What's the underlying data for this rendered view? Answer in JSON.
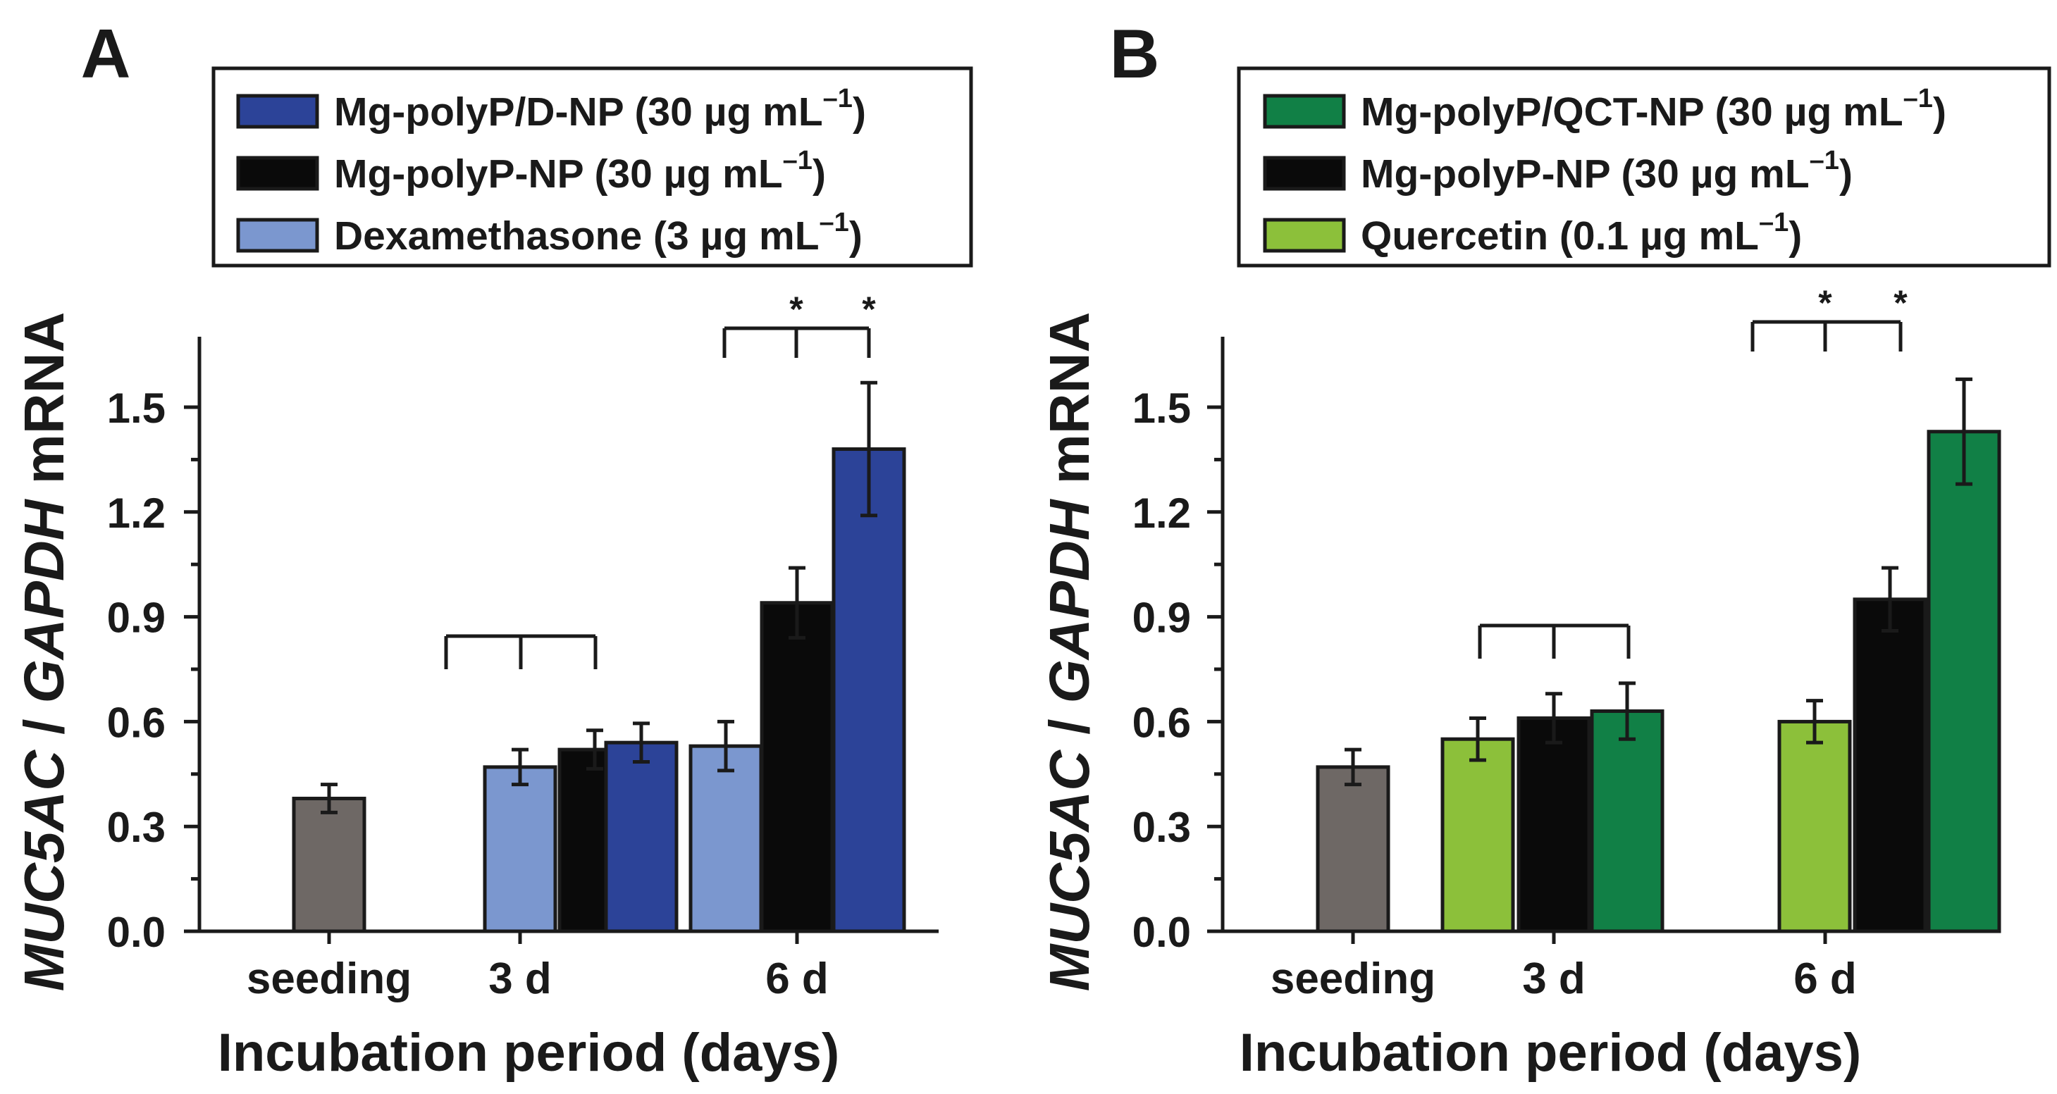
{
  "figure": {
    "panel_labels": [
      "A",
      "B"
    ],
    "star": "*"
  },
  "colors": {
    "seeding": "#6e6865",
    "np_plain": "#0a0a0a",
    "dex": "#7b97cf",
    "dnp": "#2c4398",
    "qct": "#8cc03a",
    "qctnp": "#118046",
    "axis": "#1a1a1a"
  },
  "chart_data": [
    {
      "type": "bar",
      "panel": "A",
      "categories": [
        "seeding",
        "3 d",
        "6 d"
      ],
      "xlabel": "Incubation period (days)",
      "ylabel_parts": [
        "MUC5AC",
        " / ",
        "GAPDH",
        " mRNA"
      ],
      "ylim": [
        0,
        1.7
      ],
      "yticks": [
        "0.0",
        "0.3",
        "0.6",
        "0.9",
        "1.2",
        "1.5"
      ],
      "legend": [
        {
          "label": "Mg-polyP/D-NP (30 µg mL",
          "sup": "–1",
          "close": ")",
          "color": "#2c4398"
        },
        {
          "label": "Mg-polyP-NP (30 µg   mL",
          "sup": "–1",
          "close": ")",
          "color": "#0a0a0a"
        },
        {
          "label": "Dexamethasone (3 µg mL",
          "sup": "–1",
          "close": ")",
          "color": "#7b97cf"
        }
      ],
      "bars": [
        {
          "group": "seeding",
          "series": "Seeding",
          "value": 0.38,
          "error": 0.04,
          "color": "#6e6865"
        },
        {
          "group": "3 d",
          "series": "Dexamethasone (3 µg mL–1)",
          "value": 0.47,
          "error": 0.05,
          "color": "#7b97cf"
        },
        {
          "group": "3 d",
          "series": "Mg-polyP-NP (30 µg mL–1)",
          "value": 0.52,
          "error": 0.055,
          "color": "#0a0a0a"
        },
        {
          "group": "3 d",
          "series": "Mg-polyP/D-NP (30 µg mL–1)",
          "value": 0.54,
          "error": 0.055,
          "color": "#2c4398"
        },
        {
          "group": "6 d",
          "series": "Dexamethasone (3 µg mL–1)",
          "value": 0.53,
          "error": 0.07,
          "color": "#7b97cf"
        },
        {
          "group": "6 d",
          "series": "Mg-polyP-NP (30 µg mL–1)",
          "value": 0.94,
          "error": 0.1,
          "color": "#0a0a0a"
        },
        {
          "group": "6 d",
          "series": "Mg-polyP/D-NP (30 µg mL–1)",
          "value": 1.38,
          "error": 0.19,
          "color": "#2c4398"
        }
      ],
      "significance": [
        {
          "group": "3 d",
          "stars": [
            false,
            false
          ]
        },
        {
          "group": "6 d",
          "stars": [
            true,
            true
          ]
        }
      ]
    },
    {
      "type": "bar",
      "panel": "B",
      "categories": [
        "seeding",
        "3 d",
        "6 d"
      ],
      "xlabel": "Incubation period (days)",
      "ylabel_parts": [
        "MUC5AC",
        " / ",
        "GAPDH",
        " mRNA"
      ],
      "ylim": [
        0,
        1.7
      ],
      "yticks": [
        "0.0",
        "0.3",
        "0.6",
        "0.9",
        "1.2",
        "1.5"
      ],
      "legend": [
        {
          "label": "Mg-polyP/QCT-NP (30 µg mL",
          "sup": "–1",
          "close": ")",
          "color": "#118046"
        },
        {
          "label": "Mg-polyP-NP (30 µg   mL",
          "sup": "–1",
          "close": ")",
          "color": "#0a0a0a"
        },
        {
          "label": "Quercetin (0.1 µg mL",
          "sup": "–1",
          "close": ")",
          "color": "#8cc03a"
        }
      ],
      "bars": [
        {
          "group": "seeding",
          "series": "Seeding",
          "value": 0.47,
          "error": 0.05,
          "color": "#6e6865"
        },
        {
          "group": "3 d",
          "series": "Quercetin (0.1 µg mL–1)",
          "value": 0.55,
          "error": 0.06,
          "color": "#8cc03a"
        },
        {
          "group": "3 d",
          "series": "Mg-polyP-NP (30 µg mL–1)",
          "value": 0.61,
          "error": 0.07,
          "color": "#0a0a0a"
        },
        {
          "group": "3 d",
          "series": "Mg-polyP/QCT-NP (30 µg mL–1)",
          "value": 0.63,
          "error": 0.08,
          "color": "#118046"
        },
        {
          "group": "6 d",
          "series": "Quercetin (0.1 µg mL–1)",
          "value": 0.6,
          "error": 0.06,
          "color": "#8cc03a"
        },
        {
          "group": "6 d",
          "series": "Mg-polyP-NP (30 µg mL–1)",
          "value": 0.95,
          "error": 0.09,
          "color": "#0a0a0a"
        },
        {
          "group": "6 d",
          "series": "Mg-polyP/QCT-NP (30 µg mL–1)",
          "value": 1.43,
          "error": 0.15,
          "color": "#118046"
        }
      ],
      "significance": [
        {
          "group": "3 d",
          "stars": [
            false,
            false
          ]
        },
        {
          "group": "6 d",
          "stars": [
            true,
            true
          ]
        }
      ]
    }
  ]
}
